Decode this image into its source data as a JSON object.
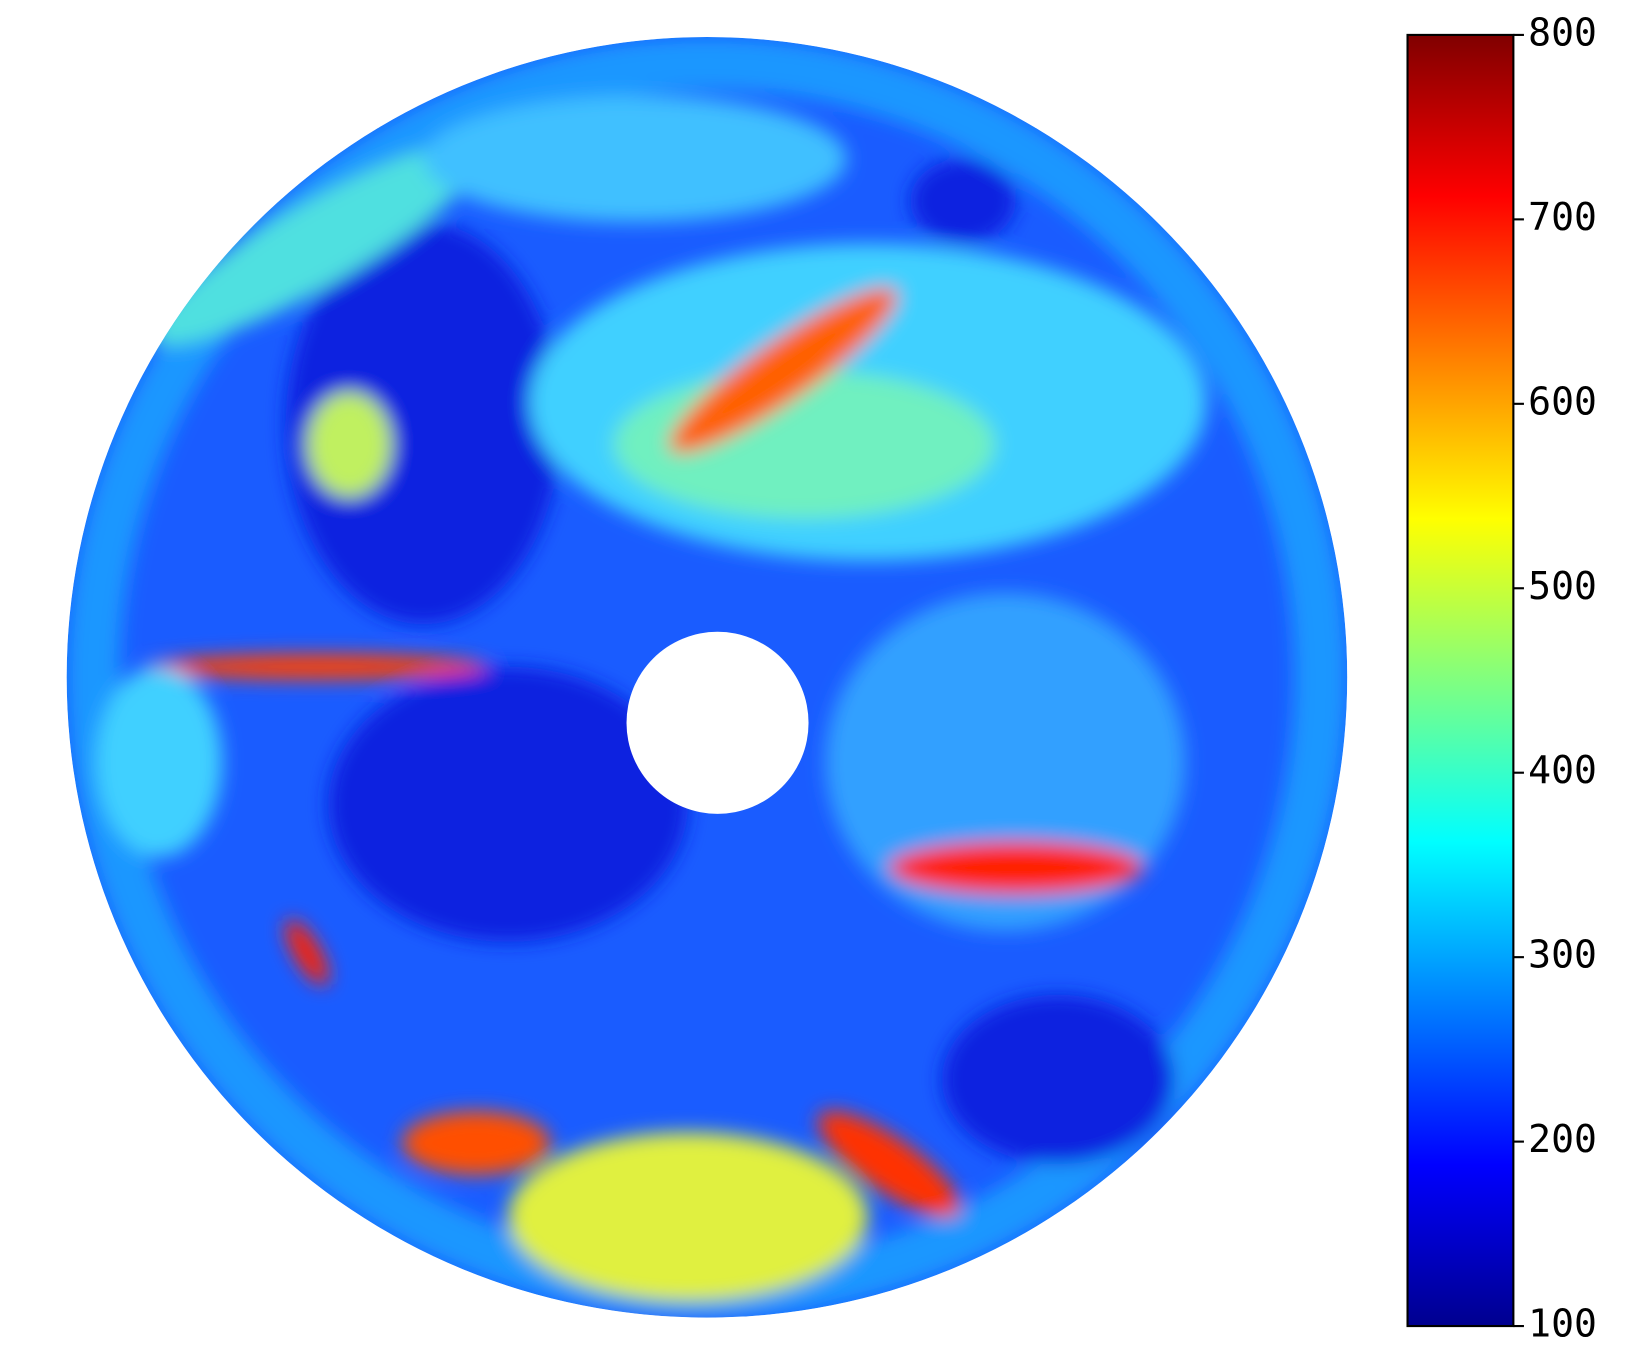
{
  "chart_data": {
    "type": "heatmap",
    "colorbar": {
      "clim": [
        100,
        800
      ],
      "ticks": [
        100,
        200,
        300,
        400,
        500,
        600,
        700,
        800
      ],
      "colormap": [
        "#00008f",
        "#0000ff",
        "#0080ff",
        "#00ffff",
        "#80ff80",
        "#ffff00",
        "#ff8000",
        "#ff0000",
        "#800000"
      ]
    }
  }
}
